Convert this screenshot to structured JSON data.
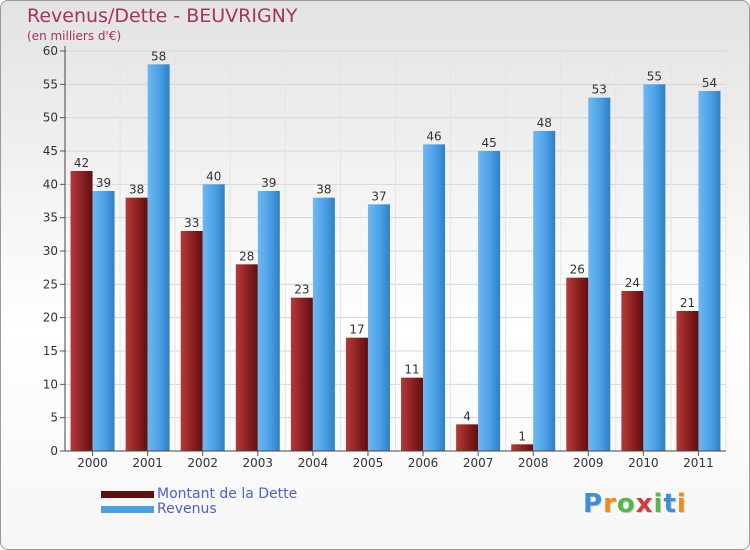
{
  "title": "Revenus/Dette - BEUVRIGNY",
  "subtitle": "(en milliers d'€)",
  "logo": {
    "letters": [
      "P",
      "r",
      "o",
      "x",
      "i",
      "t",
      "i"
    ],
    "colors": [
      "#3b8fd9",
      "#f08a1c",
      "#57b84a",
      "#d23c3c",
      "#57b84a",
      "#3b8fd9",
      "#f08a1c"
    ]
  },
  "colors": {
    "dette": "#8b1f1f",
    "revenus": "#4aa0e6",
    "title": "#a8325e",
    "legend_text": "#4b5fd6"
  },
  "chart_data": {
    "type": "bar",
    "title": "Revenus/Dette - BEUVRIGNY",
    "subtitle": "(en milliers d'€)",
    "categories": [
      "2000",
      "2001",
      "2002",
      "2003",
      "2004",
      "2005",
      "2006",
      "2007",
      "2008",
      "2009",
      "2010",
      "2011"
    ],
    "series": [
      {
        "name": "Montant de la Dette",
        "values": [
          42,
          38,
          33,
          28,
          23,
          17,
          11,
          4,
          1,
          26,
          24,
          21
        ]
      },
      {
        "name": "Revenus",
        "values": [
          39,
          58,
          40,
          39,
          38,
          37,
          46,
          45,
          48,
          53,
          55,
          54
        ]
      }
    ],
    "ylim": [
      0,
      60
    ],
    "yticks": [
      "0",
      "5",
      "10",
      "15",
      "20",
      "25",
      "30",
      "35",
      "40",
      "45",
      "50",
      "55",
      "60"
    ],
    "grid": true,
    "legend_position": "bottom-left"
  }
}
